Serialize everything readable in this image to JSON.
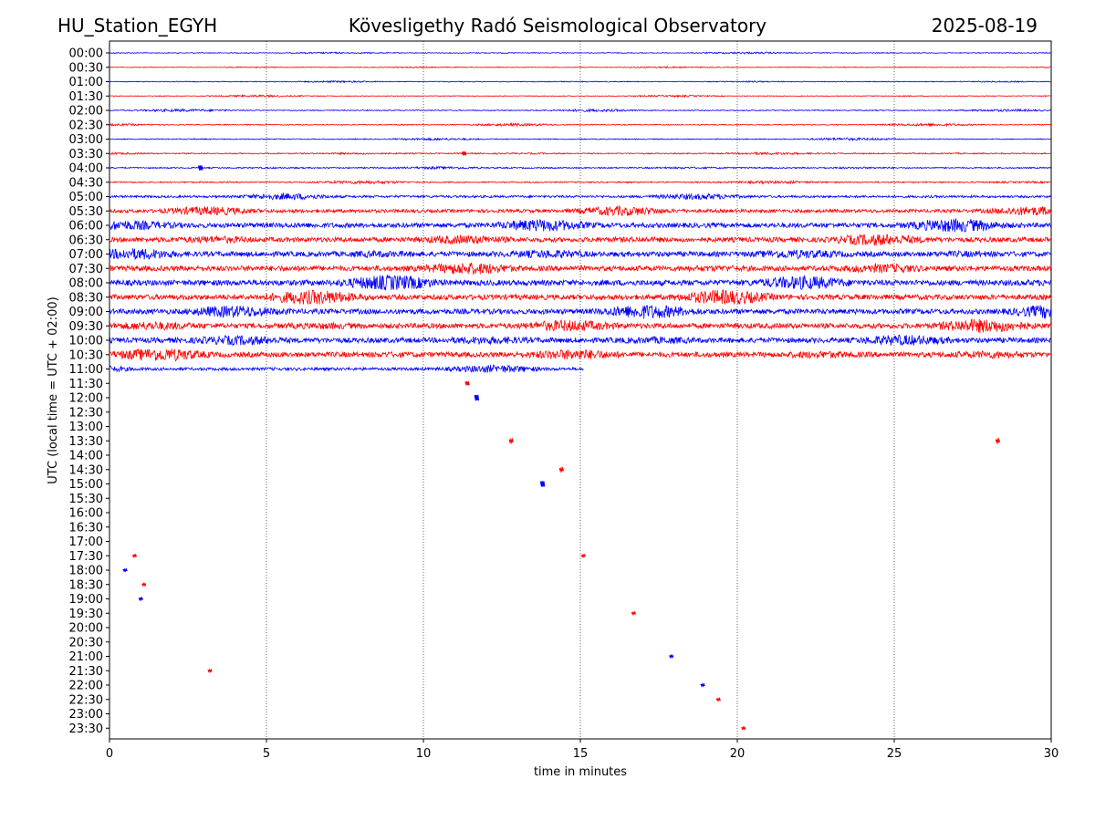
{
  "header": {
    "station": "HU_Station_EGYH",
    "observatory": "Kövesligethy Radó Seismological Observatory",
    "date": "2025-08-19"
  },
  "chart_data": {
    "type": "line",
    "title": "Kövesligethy Radó Seismological Observatory",
    "xlabel": "time in minutes",
    "ylabel": "UTC (local time = UTC + 02:00)",
    "xlim": [
      0,
      30
    ],
    "x_ticks": [
      0,
      5,
      10,
      15,
      20,
      25,
      30
    ],
    "grid": "vertical dotted lines at 5, 10, 15, 20, 25",
    "colors": {
      "even_hour_trace": "#0000ff",
      "half_hour_trace": "#ff0000"
    },
    "rows": [
      "00:00",
      "00:30",
      "01:00",
      "01:30",
      "02:00",
      "02:30",
      "03:00",
      "03:30",
      "04:00",
      "04:30",
      "05:00",
      "05:30",
      "06:00",
      "06:30",
      "07:00",
      "07:30",
      "08:00",
      "08:30",
      "09:00",
      "09:30",
      "10:00",
      "10:30",
      "11:00",
      "11:30",
      "12:00",
      "12:30",
      "13:00",
      "13:30",
      "14:00",
      "14:30",
      "15:00",
      "15:30",
      "16:00",
      "16:30",
      "17:00",
      "17:30",
      "18:00",
      "18:30",
      "19:00",
      "19:30",
      "20:00",
      "20:30",
      "21:00",
      "21:30",
      "22:00",
      "22:30",
      "23:00",
      "23:30"
    ],
    "trace_extent_minutes": [
      30,
      30,
      30,
      30,
      30,
      30,
      30,
      30,
      30,
      30,
      30,
      30,
      30,
      30,
      30,
      30,
      30,
      30,
      30,
      30,
      30,
      30,
      15.1,
      0,
      0,
      0,
      0,
      0,
      0,
      0,
      0,
      0,
      0,
      0,
      0,
      0,
      0,
      0,
      0,
      0,
      0,
      0,
      0,
      0,
      0,
      0,
      0,
      0
    ],
    "noise_level": [
      0.4,
      0.4,
      0.4,
      0.4,
      0.5,
      0.5,
      0.5,
      0.6,
      0.7,
      0.7,
      1.2,
      1.8,
      2.6,
      2.6,
      2.8,
      2.8,
      3.0,
      2.8,
      2.8,
      2.8,
      2.8,
      2.8,
      1.6,
      0,
      0,
      0,
      0,
      0,
      0,
      0,
      0,
      0,
      0,
      0,
      0,
      0,
      0,
      0,
      0,
      0,
      0,
      0,
      0,
      0,
      0,
      0,
      0,
      0
    ],
    "events": [
      {
        "row": "04:00",
        "minute": 2.9,
        "amplitude": 2.5
      },
      {
        "row": "03:30",
        "minute": 11.3,
        "amplitude": 2
      },
      {
        "row": "11:30",
        "minute": 11.4,
        "amplitude": 2
      },
      {
        "row": "12:00",
        "minute": 11.7,
        "amplitude": 3
      },
      {
        "row": "13:30",
        "minute": 12.8,
        "amplitude": 1.5
      },
      {
        "row": "13:30",
        "minute": 28.3,
        "amplitude": 1.5
      },
      {
        "row": "14:30",
        "minute": 14.4,
        "amplitude": 1.5
      },
      {
        "row": "15:00",
        "minute": 13.8,
        "amplitude": 3
      },
      {
        "row": "17:30",
        "minute": 0.8,
        "amplitude": 1
      },
      {
        "row": "17:30",
        "minute": 15.1,
        "amplitude": 1
      },
      {
        "row": "18:00",
        "minute": 0.5,
        "amplitude": 1
      },
      {
        "row": "18:30",
        "minute": 1.1,
        "amplitude": 1
      },
      {
        "row": "19:00",
        "minute": 1.0,
        "amplitude": 1
      },
      {
        "row": "19:30",
        "minute": 16.7,
        "amplitude": 1
      },
      {
        "row": "21:00",
        "minute": 17.9,
        "amplitude": 1
      },
      {
        "row": "21:30",
        "minute": 3.2,
        "amplitude": 1
      },
      {
        "row": "22:00",
        "minute": 18.9,
        "amplitude": 1
      },
      {
        "row": "22:30",
        "minute": 19.4,
        "amplitude": 1
      },
      {
        "row": "23:30",
        "minute": 20.2,
        "amplitude": 1
      }
    ]
  }
}
